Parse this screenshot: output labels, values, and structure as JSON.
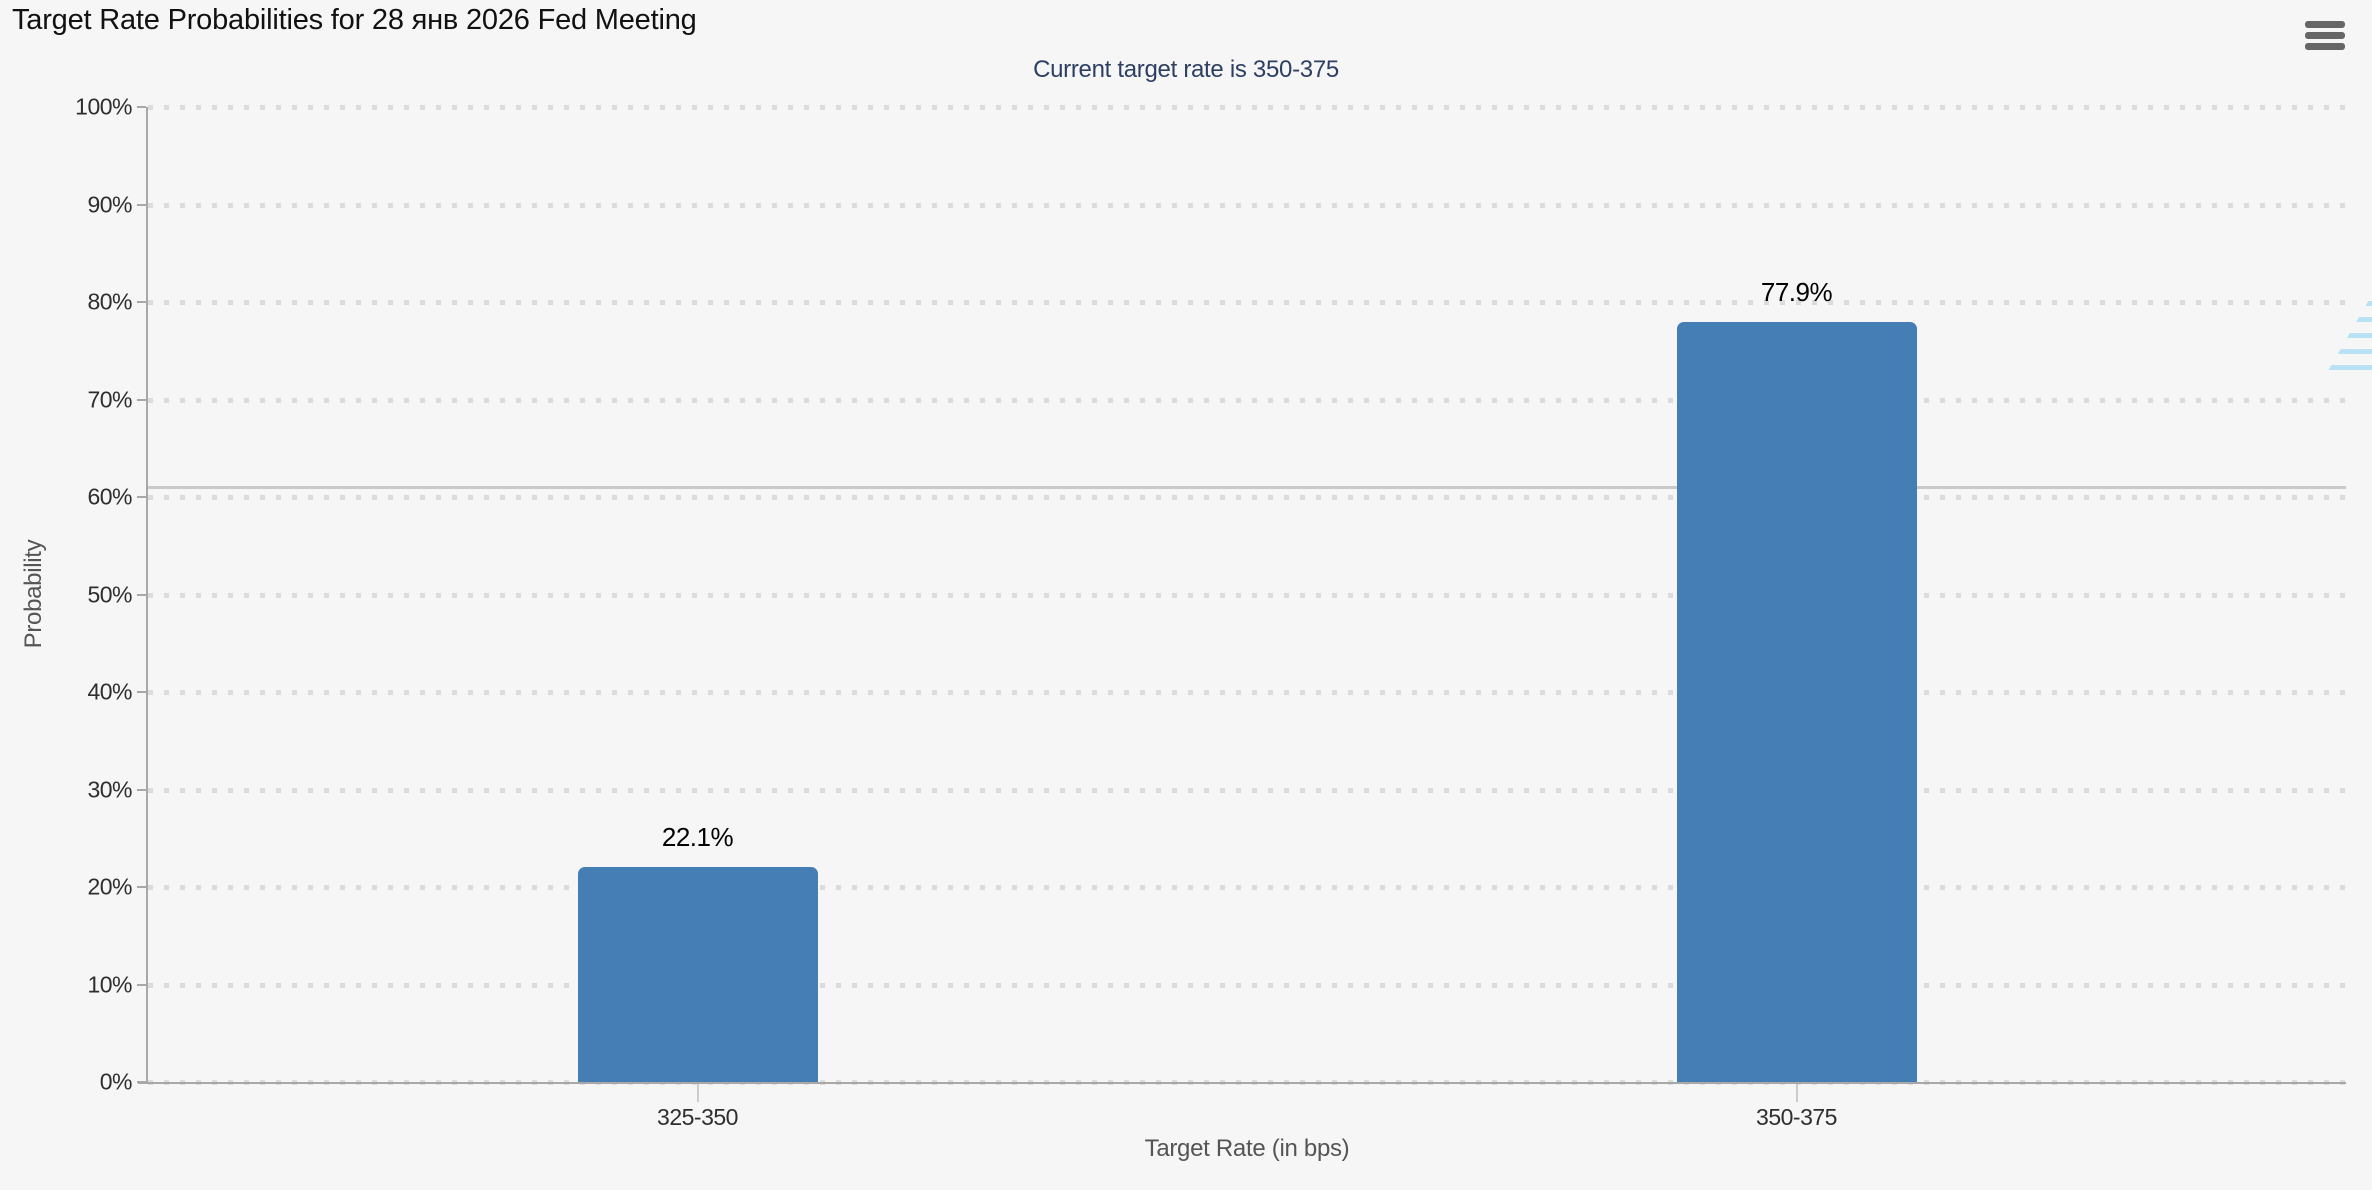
{
  "controls": {
    "menu_icon": "hamburger-menu-icon"
  },
  "watermark_letter": "Q",
  "chart_data": {
    "type": "bar",
    "title": "Target Rate Probabilities for 28 янв 2026 Fed Meeting",
    "subtitle": "Current target rate is 350-375",
    "categories": [
      "325-350",
      "350-375"
    ],
    "values": [
      22.1,
      77.9
    ],
    "value_labels": [
      "22.1%",
      "77.9%"
    ],
    "xlabel": "Target Rate (in bps)",
    "ylabel": "Probability",
    "ylim": [
      0,
      100
    ],
    "ytick_labels": [
      "0%",
      "10%",
      "20%",
      "30%",
      "40%",
      "50%",
      "60%",
      "70%",
      "80%",
      "90%",
      "100%"
    ],
    "grid": "dotted horizontal, every 10%",
    "legend": "none",
    "bar_color": "#457EB4",
    "reference_line_pct": 61
  }
}
